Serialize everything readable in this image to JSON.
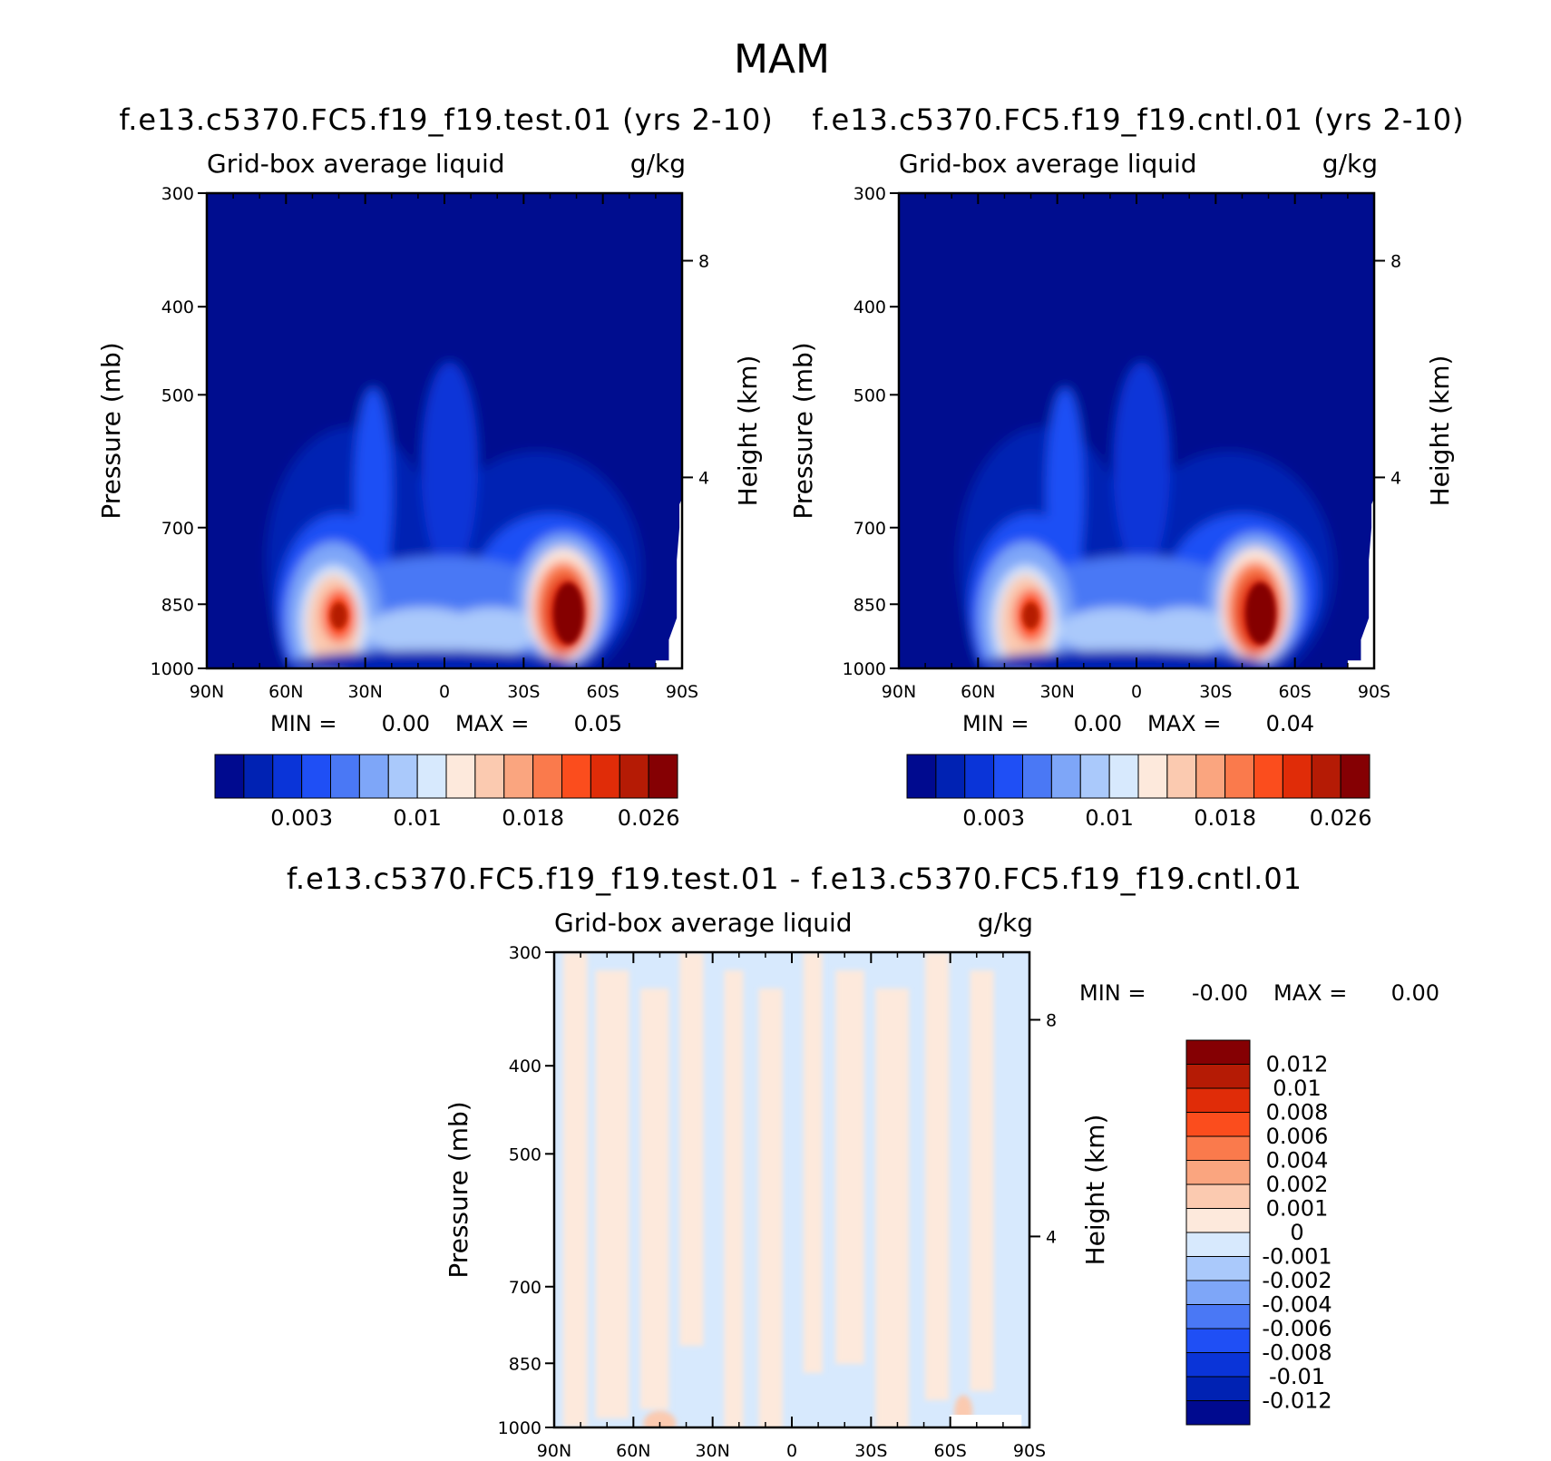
{
  "main_title": "MAM",
  "colors": {
    "abs_scale": [
      "#000a8f",
      "#0022b3",
      "#0a34d8",
      "#1f4ff5",
      "#4a78f5",
      "#7ea6f8",
      "#aac9fb",
      "#d7e9fd",
      "#fde9dc",
      "#fbcab0",
      "#faa57f",
      "#fa7a4c",
      "#fb4d1d",
      "#e02c08",
      "#b51b05",
      "#850003"
    ],
    "diff_scale": [
      "#000a8f",
      "#0022b3",
      "#0a34d8",
      "#1f4ff5",
      "#4a78f5",
      "#7ea6f8",
      "#aac9fb",
      "#d7e9fd",
      "#fde9dc",
      "#fbcab0",
      "#faa57f",
      "#fa7a4c",
      "#fb4d1d",
      "#e02c08",
      "#b51b05",
      "#850003"
    ]
  },
  "chart_data": [
    {
      "type": "heatmap",
      "title": "f.e13.c5370.FC5.f19_f19.test.01 (yrs 2-10)",
      "subtitle_left": "Grid-box average liquid",
      "subtitle_right": "g/kg",
      "ylabel": "Pressure (mb)",
      "ylabel_right": "Height (km)",
      "x_ticks": [
        "90N",
        "60N",
        "30N",
        "0",
        "30S",
        "60S",
        "90S"
      ],
      "y_ticks": [
        300,
        400,
        500,
        700,
        850,
        1000
      ],
      "y_right_ticks": [
        8,
        4
      ],
      "min_label": "MIN =",
      "min_value": "0.00",
      "max_label": "MAX =",
      "max_value": "0.05",
      "colorbar_labels": [
        "0.003",
        "0.01",
        "0.018",
        "0.026"
      ],
      "features": [
        {
          "lat": 40,
          "p": 875,
          "value": 0.03
        },
        {
          "lat": -47,
          "p": 870,
          "value": 0.05
        }
      ]
    },
    {
      "type": "heatmap",
      "title": "f.e13.c5370.FC5.f19_f19.cntl.01 (yrs 2-10)",
      "subtitle_left": "Grid-box average liquid",
      "subtitle_right": "g/kg",
      "ylabel": "Pressure (mb)",
      "ylabel_right": "Height (km)",
      "x_ticks": [
        "90N",
        "60N",
        "30N",
        "0",
        "30S",
        "60S",
        "90S"
      ],
      "y_ticks": [
        300,
        400,
        500,
        700,
        850,
        1000
      ],
      "y_right_ticks": [
        8,
        4
      ],
      "min_label": "MIN =",
      "min_value": "0.00",
      "max_label": "MAX =",
      "max_value": "0.04",
      "colorbar_labels": [
        "0.003",
        "0.01",
        "0.018",
        "0.026"
      ],
      "features": [
        {
          "lat": 40,
          "p": 875,
          "value": 0.03
        },
        {
          "lat": -47,
          "p": 870,
          "value": 0.04
        }
      ]
    },
    {
      "type": "heatmap",
      "title": "f.e13.c5370.FC5.f19_f19.test.01 - f.e13.c5370.FC5.f19_f19.cntl.01",
      "subtitle_left": "Grid-box average liquid",
      "subtitle_right": "g/kg",
      "ylabel": "Pressure (mb)",
      "ylabel_right": "Height (km)",
      "x_ticks": [
        "90N",
        "60N",
        "30N",
        "0",
        "30S",
        "60S",
        "90S"
      ],
      "y_ticks": [
        300,
        400,
        500,
        700,
        850,
        1000
      ],
      "y_right_ticks": [
        8,
        4
      ],
      "min_label": "MIN =",
      "min_value": "-0.00",
      "max_label": "MAX =",
      "max_value": "0.00",
      "colorbar_labels": [
        "0.012",
        "0.01",
        "0.008",
        "0.006",
        "0.004",
        "0.002",
        "0.001",
        "0",
        "-0.001",
        "-0.002",
        "-0.004",
        "-0.006",
        "-0.008",
        "-0.01",
        "-0.012"
      ]
    }
  ]
}
